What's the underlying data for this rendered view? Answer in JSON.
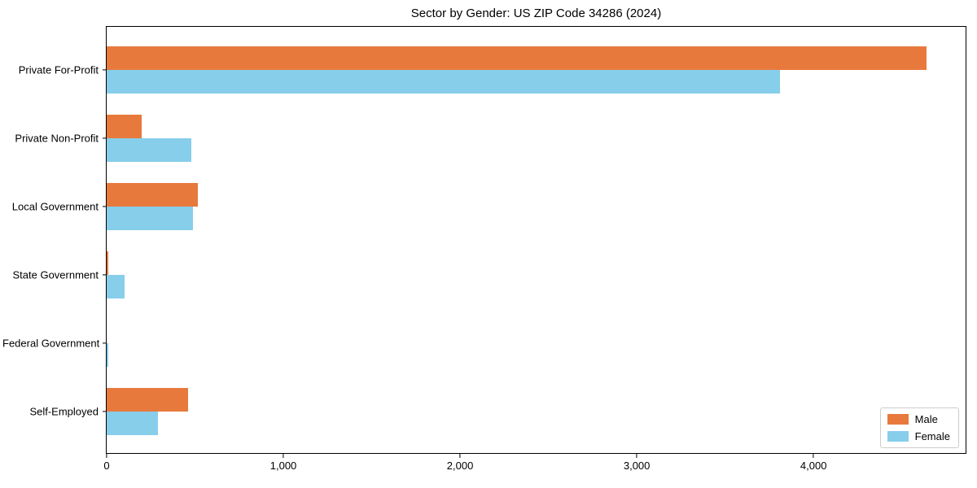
{
  "title": "Sector by Gender: US ZIP Code 34286 (2024)",
  "chart_data": {
    "type": "bar",
    "orientation": "horizontal",
    "title": "Sector by Gender: US ZIP Code 34286 (2024)",
    "categories": [
      "Private For-Profit",
      "Private Non-Profit",
      "Local Government",
      "State Government",
      "Federal Government",
      "Self-Employed"
    ],
    "series": [
      {
        "name": "Male",
        "color": "#e8793d",
        "values": [
          4640,
          200,
          515,
          11,
          0,
          463
        ]
      },
      {
        "name": "Female",
        "color": "#87ceeb",
        "values": [
          3810,
          477,
          490,
          103,
          8,
          292
        ]
      }
    ],
    "xlabel": "",
    "ylabel": "",
    "xlim": [
      0,
      4870
    ],
    "xticks": [
      0,
      1000,
      2000,
      3000,
      4000
    ],
    "xtick_labels": [
      "0",
      "1,000",
      "2,000",
      "3,000",
      "4,000"
    ],
    "legend_position": "lower right",
    "grid": false
  }
}
